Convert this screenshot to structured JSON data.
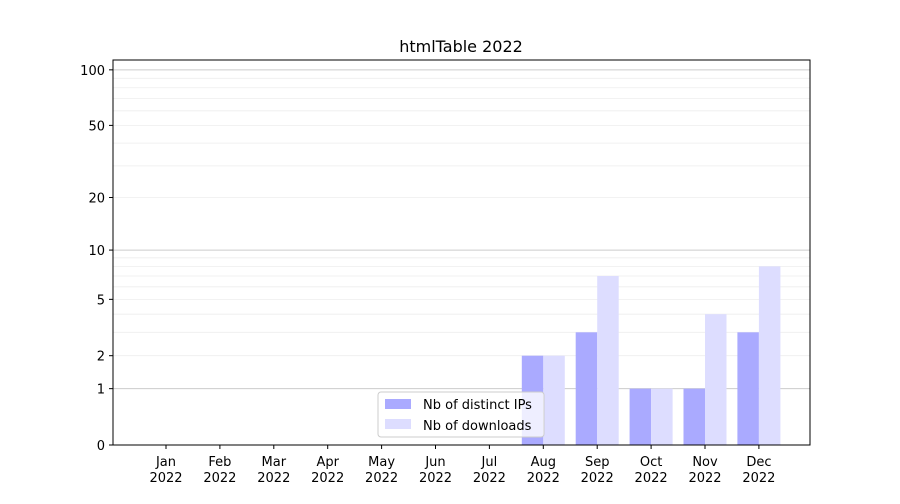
{
  "chart_data": {
    "type": "bar",
    "title": "htmlTable 2022",
    "xlabel": "",
    "ylabel": "",
    "yscale": "log(1+y)",
    "ylim": [
      0,
      113
    ],
    "yticks": [
      0,
      1,
      2,
      5,
      10,
      20,
      50,
      100
    ],
    "grid": true,
    "legend_placement": "bottom-center",
    "categories": [
      "Jan\n2022",
      "Feb\n2022",
      "Mar\n2022",
      "Apr\n2022",
      "May\n2022",
      "Jun\n2022",
      "Jul\n2022",
      "Aug\n2022",
      "Sep\n2022",
      "Oct\n2022",
      "Nov\n2022",
      "Dec\n2022"
    ],
    "series": [
      {
        "name": "Nb of distinct IPs",
        "color": "#aaaaff",
        "values": [
          0,
          0,
          0,
          0,
          0,
          0,
          0,
          2,
          3,
          1,
          1,
          3
        ]
      },
      {
        "name": "Nb of downloads",
        "color": "#ddddff",
        "values": [
          0,
          0,
          0,
          0,
          0,
          0,
          0,
          2,
          7,
          1,
          4,
          8
        ]
      }
    ]
  }
}
